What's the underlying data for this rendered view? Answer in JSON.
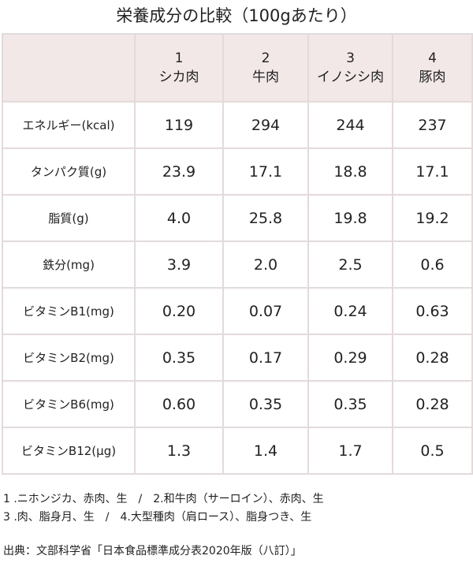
{
  "title": "栄養成分の比較（100gあたり）",
  "table": {
    "header": [
      {
        "number": "1",
        "name": "シカ肉"
      },
      {
        "number": "2",
        "name": "牛肉"
      },
      {
        "number": "3",
        "name": "イノシシ肉"
      },
      {
        "number": "4",
        "name": "豚肉"
      }
    ],
    "rows": [
      {
        "label": "エネルギー(kcal)",
        "values": [
          "119",
          "294",
          "244",
          "237"
        ]
      },
      {
        "label": "タンパク質(g)",
        "values": [
          "23.9",
          "17.1",
          "18.8",
          "17.1"
        ]
      },
      {
        "label": "脂質(g)",
        "values": [
          "4.0",
          "25.8",
          "19.8",
          "19.2"
        ]
      },
      {
        "label": "鉄分(mg)",
        "values": [
          "3.9",
          "2.0",
          "2.5",
          "0.6"
        ]
      },
      {
        "label": "ビタミンB1(mg)",
        "values": [
          "0.20",
          "0.07",
          "0.24",
          "0.63"
        ]
      },
      {
        "label": "ビタミンB2(mg)",
        "values": [
          "0.35",
          "0.17",
          "0.29",
          "0.28"
        ]
      },
      {
        "label": "ビタミンB6(mg)",
        "values": [
          "0.60",
          "0.35",
          "0.35",
          "0.28"
        ]
      },
      {
        "label": "ビタミンB12(μg)",
        "values": [
          "1.3",
          "1.4",
          "1.7",
          "0.5"
        ]
      }
    ]
  },
  "notes": [
    "1 .ニホンジカ、赤肉、生　/　2.和牛肉（サーロイン）、赤肉、生",
    "3 .肉、脂身月、生　/　4.大型種肉（肩ロース）、脂身つき、生"
  ],
  "source": "出典：文部科学省「日本食品標準成分表2020年版（八訂）」"
}
